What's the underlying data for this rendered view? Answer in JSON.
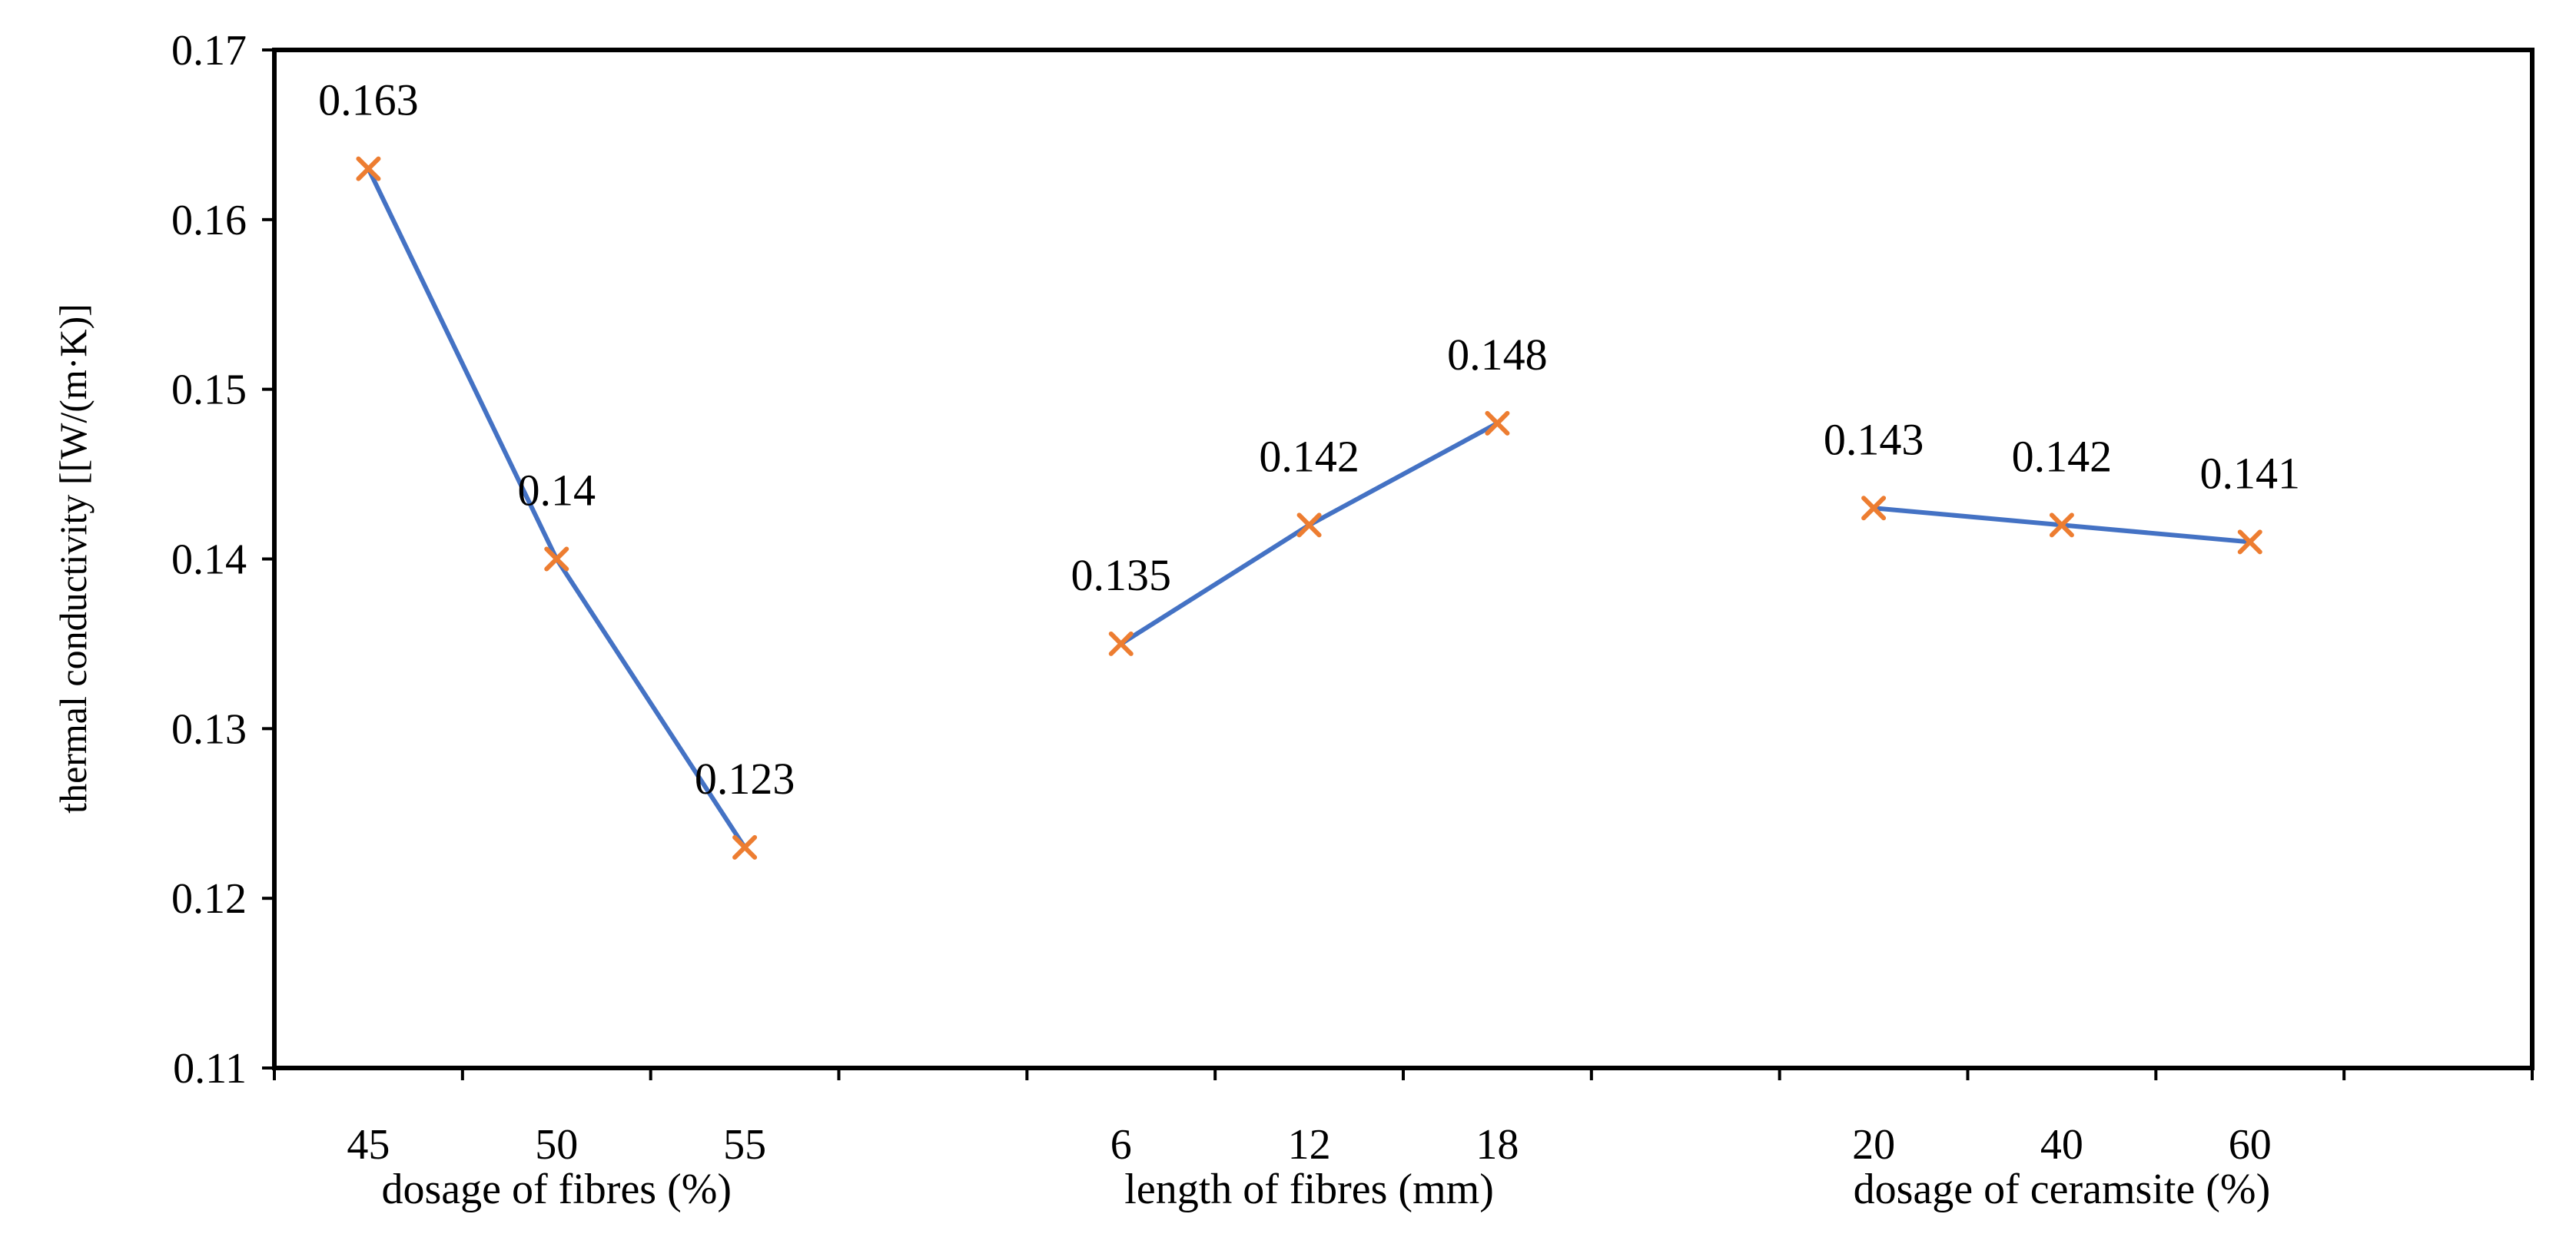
{
  "chart_data": {
    "type": "line",
    "title": "",
    "ylabel": "thermal conductivity [[W/(m·K)]",
    "ylim": [
      0.11,
      0.17
    ],
    "yticks": [
      "0.11",
      "0.12",
      "0.13",
      "0.14",
      "0.15",
      "0.16",
      "0.17"
    ],
    "grid": false,
    "legend": "none",
    "colors": {
      "line": "#4472C4",
      "marker": "#ED7D31",
      "axis": "#000000"
    },
    "groups": [
      {
        "name": "dosage of fibres (%)",
        "categories": [
          "45",
          "50",
          "55"
        ],
        "values": [
          0.163,
          0.14,
          0.123
        ],
        "labels": [
          "0.163",
          "0.14",
          "0.123"
        ]
      },
      {
        "name": "length of fibres (mm)",
        "categories": [
          "6",
          "12",
          "18"
        ],
        "values": [
          0.135,
          0.142,
          0.148
        ],
        "labels": [
          "0.135",
          "0.142",
          "0.148"
        ]
      },
      {
        "name": "dosage of ceramsite (%)",
        "categories": [
          "20",
          "40",
          "60"
        ],
        "values": [
          0.143,
          0.142,
          0.141
        ],
        "labels": [
          "0.143",
          "0.142",
          "0.141"
        ]
      }
    ]
  }
}
